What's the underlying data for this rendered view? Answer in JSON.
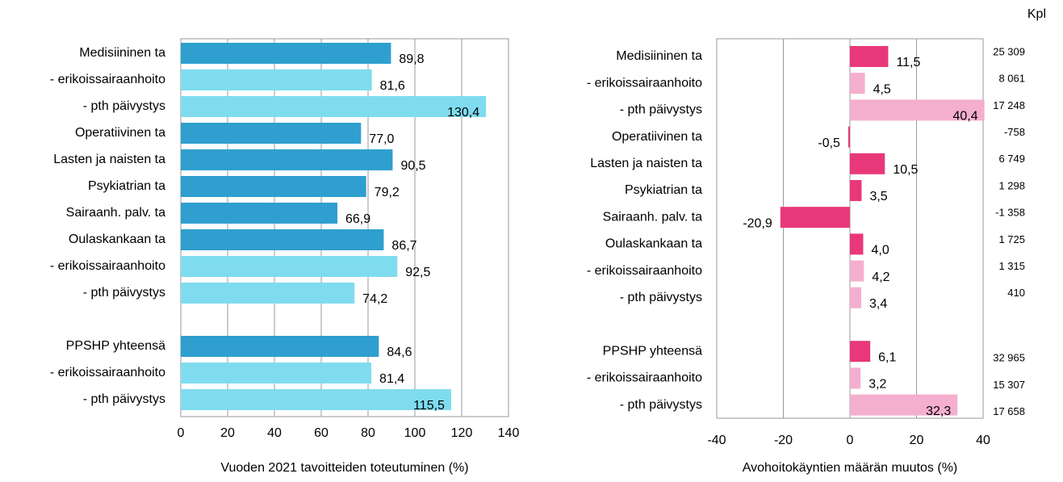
{
  "chart_data": [
    {
      "type": "bar",
      "orientation": "horizontal",
      "x_label": "Vuoden 2021 tavoitteiden toteutuminen (%)",
      "categories": [
        "Medisiininen ta",
        "- erikoissairaanhoito",
        "- pth päivystys",
        "Operatiivinen ta",
        "Lasten ja naisten ta",
        "Psykiatrian ta",
        "Sairaanh. palv. ta",
        "Oulaskankaan ta",
        "- erikoissairaanhoito",
        "- pth päivystys",
        null,
        "PPSHP yhteensä",
        "- erikoissairaanhoito",
        "- pth päivystys"
      ],
      "values": [
        89.8,
        81.6,
        130.4,
        77.0,
        90.5,
        79.2,
        66.9,
        86.7,
        92.5,
        74.2,
        null,
        84.6,
        81.4,
        115.5
      ],
      "value_labels": [
        "89,8",
        "81,6",
        "130,4",
        "77,0",
        "90,5",
        "79,2",
        "66,9",
        "86,7",
        "92,5",
        "74,2",
        null,
        "84,6",
        "81,4",
        "115,5"
      ],
      "colors": [
        "#2e9fcf",
        "#7fdcef",
        "#7fdcef",
        "#2e9fcf",
        "#2e9fcf",
        "#2e9fcf",
        "#2e9fcf",
        "#2e9fcf",
        "#7fdcef",
        "#7fdcef",
        null,
        "#2e9fcf",
        "#7fdcef",
        "#7fdcef"
      ],
      "xlim": [
        0,
        140
      ],
      "xticks": [
        0,
        20,
        40,
        60,
        80,
        100,
        120,
        140
      ],
      "grid": true
    },
    {
      "type": "bar",
      "orientation": "horizontal",
      "x_label": "Avohoitokäyntien määrän muutos (%)",
      "categories": [
        "Medisiininen ta",
        "- erikoissairaanhoito",
        "- pth päivystys",
        "Operatiivinen ta",
        "Lasten ja naisten ta",
        "Psykiatrian ta",
        "Sairaanh. palv. ta",
        "Oulaskankaan ta",
        "- erikoissairaanhoito",
        "- pth päivystys",
        null,
        "PPSHP yhteensä",
        "- erikoissairaanhoito",
        "- pth päivystys"
      ],
      "values": [
        11.5,
        4.5,
        40.4,
        -0.5,
        10.5,
        3.5,
        -20.9,
        4.0,
        4.2,
        3.4,
        null,
        6.1,
        3.2,
        32.3
      ],
      "value_labels": [
        "11,5",
        "4,5",
        "40,4",
        "-0,5",
        "10,5",
        "3,5",
        "-20,9",
        "4,0",
        "4,2",
        "3,4",
        null,
        "6,1",
        "3,2",
        "32,3"
      ],
      "colors": [
        "#e8387a",
        "#f5afce",
        "#f5afce",
        "#e8387a",
        "#e8387a",
        "#e8387a",
        "#e8387a",
        "#e8387a",
        "#f5afce",
        "#f5afce",
        null,
        "#e8387a",
        "#f5afce",
        "#f5afce"
      ],
      "counts_header": "Kpl",
      "counts": [
        "25 309",
        "8 061",
        "17 248",
        "-758",
        "6 749",
        "1 298",
        "-1 358",
        "1 725",
        "1 315",
        "410",
        null,
        "32 965",
        "15 307",
        "17 658"
      ],
      "xlim": [
        -40,
        40
      ],
      "xticks": [
        -40,
        -20,
        0,
        20,
        40
      ],
      "grid": true
    }
  ]
}
